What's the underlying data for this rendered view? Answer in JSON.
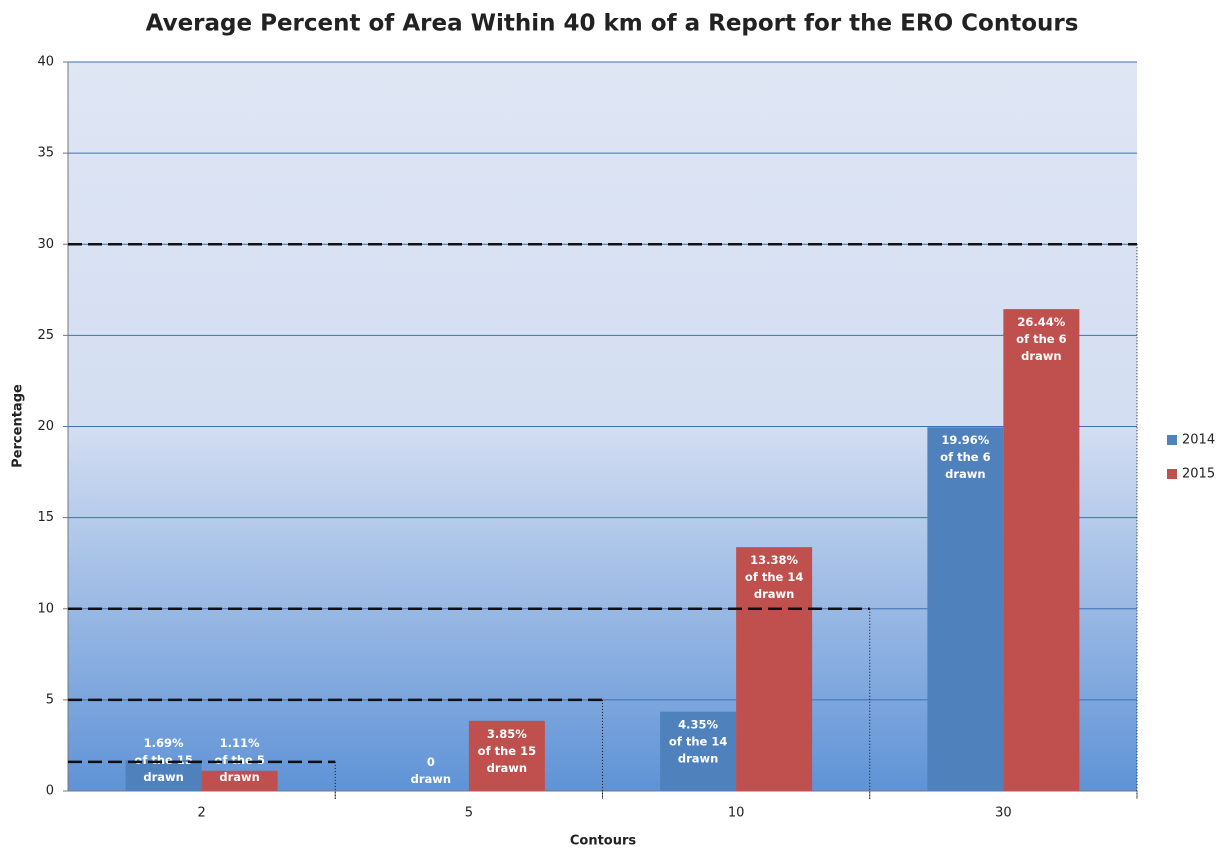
{
  "chart_data": {
    "type": "bar",
    "title": "Average Percent of Area Within 40 km of a Report for the ERO Contours",
    "x_label": "Contours",
    "y_label": "Percentage",
    "categories": [
      "2",
      "5",
      "10",
      "30"
    ],
    "series": [
      {
        "name": "2014",
        "color": "#4f81bd",
        "values": [
          1.69,
          0,
          4.35,
          19.96
        ],
        "value_labels": [
          "1.69%\nof the 15\ndrawn",
          "0\ndrawn",
          "4.35%\nof the 14\ndrawn",
          "19.96%\nof the 6\ndrawn"
        ]
      },
      {
        "name": "2015",
        "color": "#c0504d",
        "values": [
          1.11,
          3.85,
          13.38,
          26.44
        ],
        "value_labels": [
          "1.11%\nof the 5\ndrawn",
          "3.85%\nof the 15\ndrawn",
          "13.38%\nof the 14\ndrawn",
          "26.44%\nof the 6\ndrawn"
        ]
      }
    ],
    "reference_lines": [
      1.6,
      5,
      10,
      30
    ],
    "ylim": [
      0,
      40
    ],
    "yticks": [
      0,
      5,
      10,
      15,
      20,
      25,
      30,
      35,
      40
    ],
    "grid": true,
    "legend": "right"
  }
}
